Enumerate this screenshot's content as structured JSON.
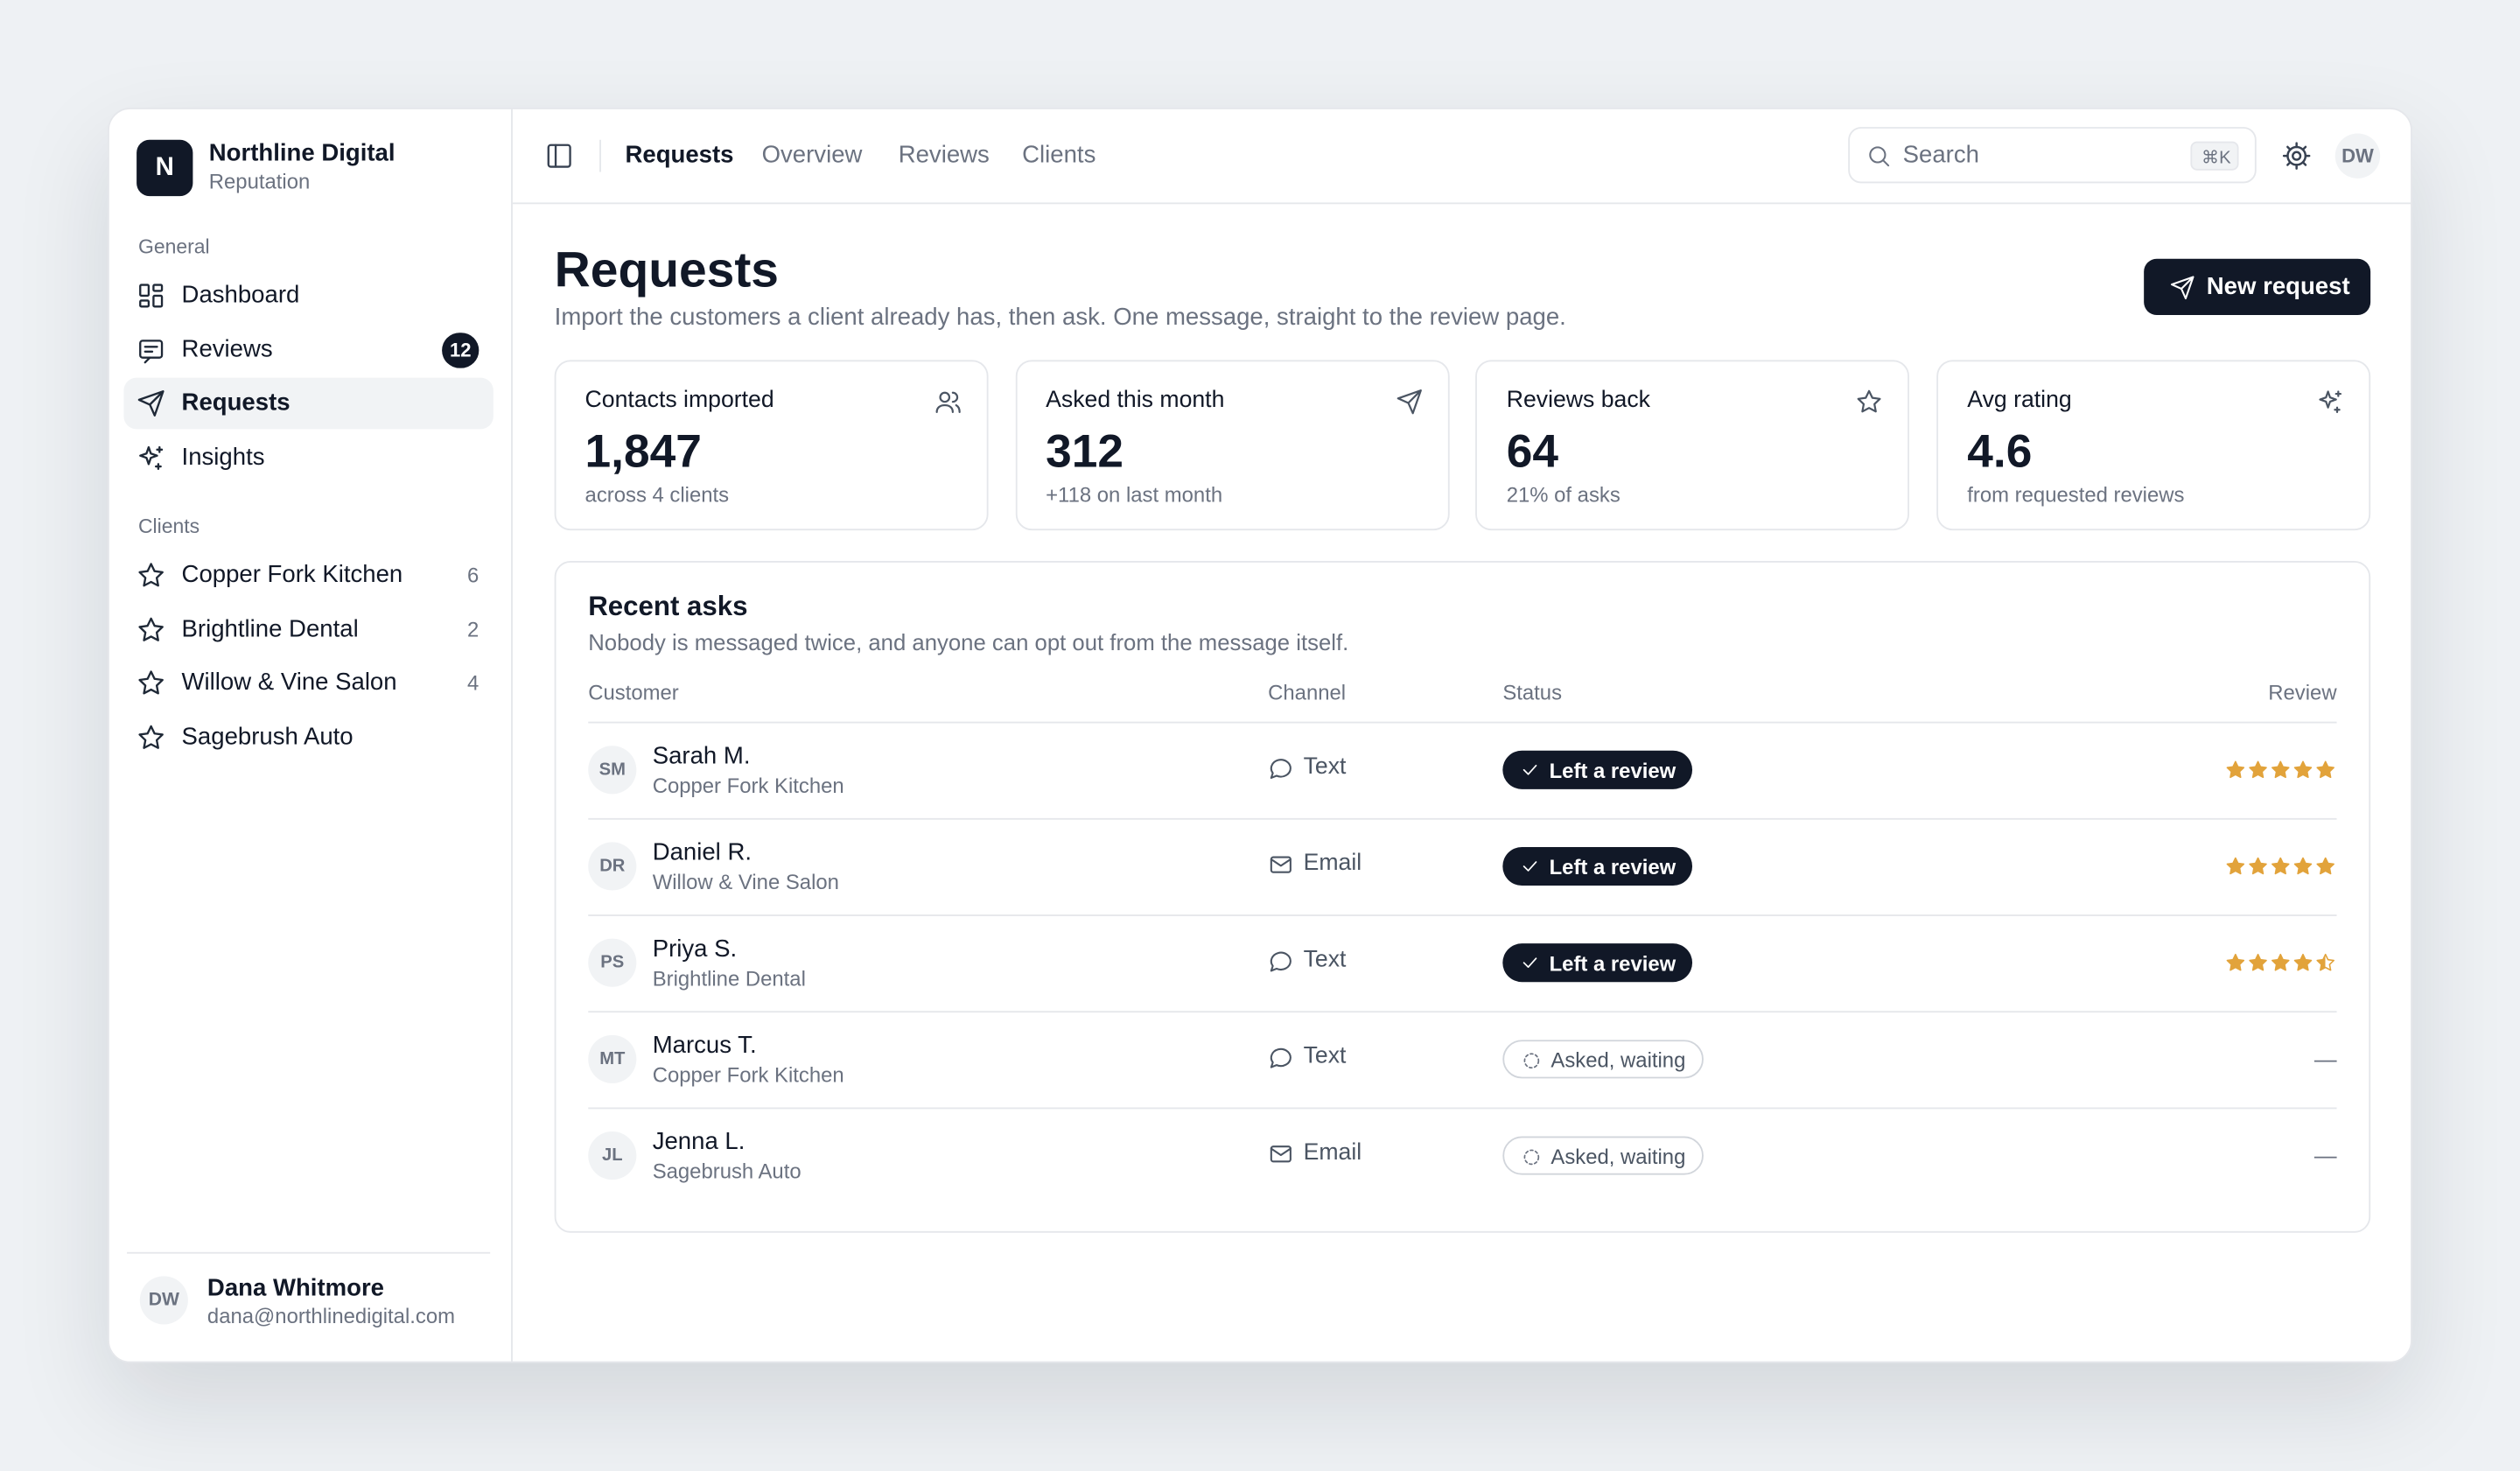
{
  "sidebar": {
    "brand": {
      "logo": "N",
      "name": "Northline Digital",
      "subtitle": "Reputation"
    },
    "sections": [
      {
        "title": "General",
        "items": [
          {
            "label": "Dashboard",
            "icon": "grid"
          },
          {
            "label": "Reviews",
            "icon": "message",
            "badge": 12
          },
          {
            "label": "Requests",
            "icon": "send",
            "active": true
          },
          {
            "label": "Insights",
            "icon": "sparkle"
          }
        ]
      },
      {
        "title": "Clients",
        "items": [
          {
            "label": "Copper Fork Kitchen",
            "icon": "star",
            "count": 6
          },
          {
            "label": "Brightline Dental",
            "icon": "star",
            "count": 2
          },
          {
            "label": "Willow & Vine Salon",
            "icon": "star",
            "count": 4
          },
          {
            "label": "Sagebrush Auto",
            "icon": "star"
          }
        ]
      }
    ],
    "user": {
      "initials": "DW",
      "name": "Dana Whitmore",
      "email": "dana@northlinedigital.com"
    }
  },
  "topbar": {
    "tabs": [
      {
        "label": "Requests",
        "active": true
      },
      {
        "label": "Overview"
      },
      {
        "label": "Reviews"
      },
      {
        "label": "Clients"
      }
    ],
    "search": {
      "placeholder": "Search",
      "shortcut": "⌘K"
    },
    "avatar": "DW"
  },
  "page": {
    "title": "Requests",
    "subtitle": "Import the customers a client already has, then ask. One message, straight to the review page.",
    "action": "New request"
  },
  "stats": [
    {
      "label": "Contacts imported",
      "value": "1,847",
      "note": "across 4 clients",
      "icon": "users"
    },
    {
      "label": "Asked this month",
      "value": 312,
      "note": "+118 on last month",
      "icon": "send"
    },
    {
      "label": "Reviews back",
      "value": 64,
      "note": "21% of asks",
      "icon": "star"
    },
    {
      "label": "Avg rating",
      "value": 4.6,
      "note": "from requested reviews",
      "icon": "sparkle"
    }
  ],
  "table": {
    "title": "Recent asks",
    "subtitle": "Nobody is messaged twice, and anyone can opt out from the message itself.",
    "columns": [
      "Customer",
      "Channel",
      "Status",
      "Review"
    ],
    "rows": [
      {
        "initials": "SM",
        "name": "Sarah M.",
        "client": "Copper Fork Kitchen",
        "channel": "Text",
        "channel_icon": "chat",
        "status": "Left a review",
        "rating": 5
      },
      {
        "initials": "DR",
        "name": "Daniel R.",
        "client": "Willow & Vine Salon",
        "channel": "Email",
        "channel_icon": "mail",
        "status": "Left a review",
        "rating": 5
      },
      {
        "initials": "PS",
        "name": "Priya S.",
        "client": "Brightline Dental",
        "channel": "Text",
        "channel_icon": "chat",
        "status": "Left a review",
        "rating": 4.5
      },
      {
        "initials": "MT",
        "name": "Marcus T.",
        "client": "Copper Fork Kitchen",
        "channel": "Text",
        "channel_icon": "chat",
        "status": "Asked, waiting",
        "rating_text": "—"
      },
      {
        "initials": "JL",
        "name": "Jenna L.",
        "client": "Sagebrush Auto",
        "channel": "Email",
        "channel_icon": "mail",
        "status": "Asked, waiting",
        "rating_text": "—"
      }
    ]
  }
}
